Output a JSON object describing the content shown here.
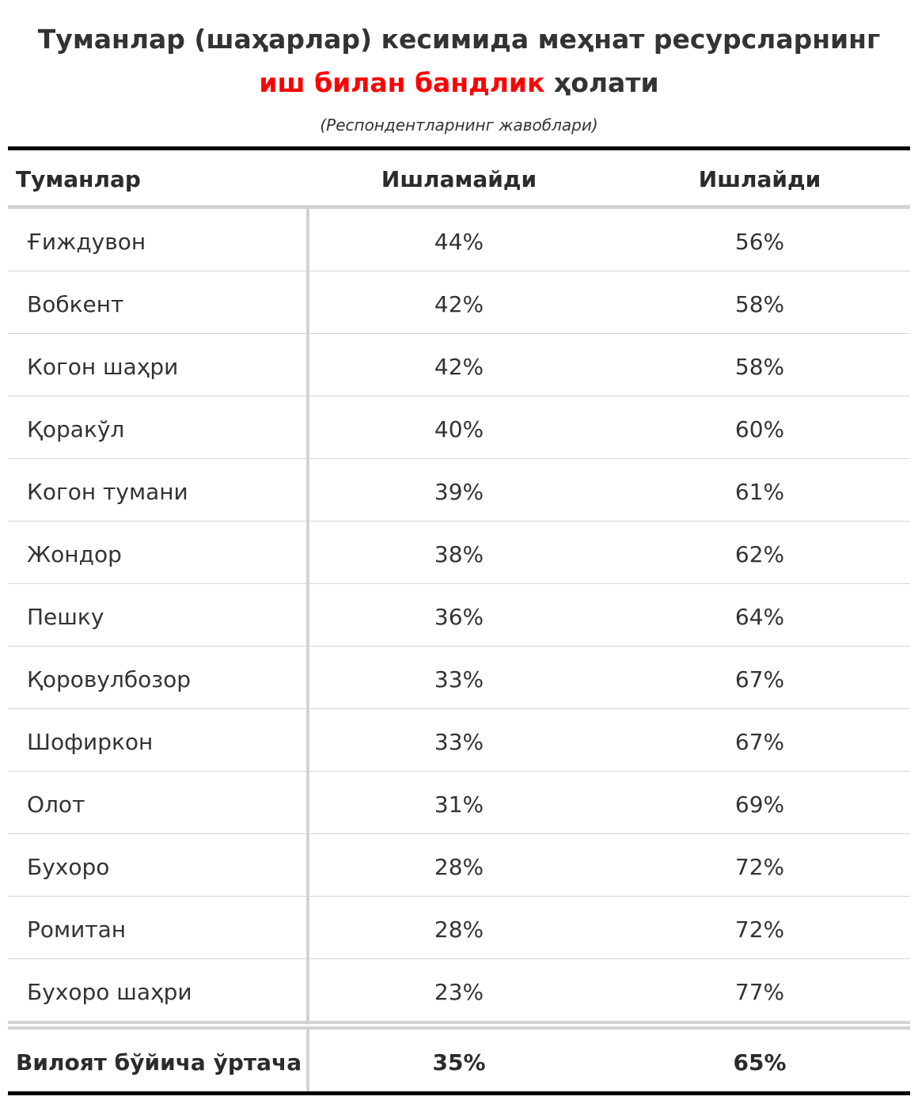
{
  "title": {
    "line1": "Туманлар (шаҳарлар) кесимида меҳнат ресурсларнинг",
    "line2_accent": "иш билан бандлик",
    "line2_rest": " ҳолати",
    "accent_color": "#ff0000"
  },
  "subtitle": "(Респондентларнинг жавоблари)",
  "chart_data": {
    "type": "table",
    "columns": [
      "Туманлар",
      "Ишламайди",
      "Ишлайди"
    ],
    "rows": [
      {
        "district": "Ғиждувон",
        "not_working": "44%",
        "working": "56%"
      },
      {
        "district": "Вобкент",
        "not_working": "42%",
        "working": "58%"
      },
      {
        "district": "Когон шаҳри",
        "not_working": "42%",
        "working": "58%"
      },
      {
        "district": "Қоракўл",
        "not_working": "40%",
        "working": "60%"
      },
      {
        "district": "Когон тумани",
        "not_working": "39%",
        "working": "61%"
      },
      {
        "district": "Жондор",
        "not_working": "38%",
        "working": "62%"
      },
      {
        "district": "Пешку",
        "not_working": "36%",
        "working": "64%"
      },
      {
        "district": "Қоровулбозор",
        "not_working": "33%",
        "working": "67%"
      },
      {
        "district": "Шофиркон",
        "not_working": "33%",
        "working": "67%"
      },
      {
        "district": "Олот",
        "not_working": "31%",
        "working": "69%"
      },
      {
        "district": "Бухоро",
        "not_working": "28%",
        "working": "72%"
      },
      {
        "district": "Ромитан",
        "not_working": "28%",
        "working": "72%"
      },
      {
        "district": "Бухоро шаҳри",
        "not_working": "23%",
        "working": "77%"
      }
    ],
    "footer": {
      "district": "Вилоят бўйича ўртача",
      "not_working": "35%",
      "working": "65%"
    }
  }
}
